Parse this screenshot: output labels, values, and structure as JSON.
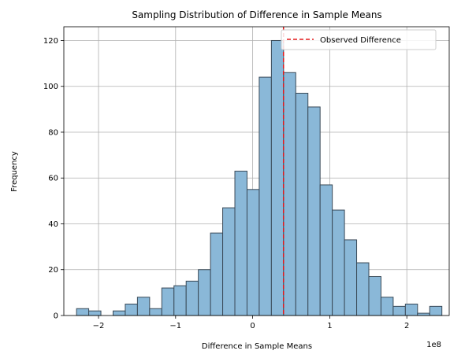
{
  "chart_data": {
    "type": "bar",
    "title": "Sampling Distribution of Difference in Sample Means",
    "xlabel": "Difference in Sample Means",
    "ylabel": "Frequency",
    "x_offset_text": "1e8",
    "xlim": [
      -2.45,
      2.55
    ],
    "ylim": [
      0,
      126
    ],
    "x_ticks": [
      -2,
      -1,
      0,
      1,
      2
    ],
    "x_tick_labels": [
      "−2",
      "−1",
      "0",
      "1",
      "2"
    ],
    "y_ticks": [
      0,
      20,
      40,
      60,
      80,
      100,
      120
    ],
    "y_tick_labels": [
      "0",
      "20",
      "40",
      "60",
      "80",
      "100",
      "120"
    ],
    "grid": true,
    "bar_color": "#8ab8d8",
    "bar_edge_color": "#3a4a58",
    "bins": {
      "start": -2.285,
      "width": 0.158,
      "counts": [
        3,
        2,
        0,
        2,
        5,
        8,
        3,
        12,
        13,
        15,
        20,
        36,
        47,
        63,
        55,
        104,
        120,
        106,
        97,
        91,
        57,
        46,
        33,
        23,
        17,
        8,
        4,
        5,
        1,
        4
      ]
    },
    "observed_difference": {
      "x": 0.4,
      "color": "#e31a1c",
      "style": "dashed",
      "label": "Observed Difference"
    },
    "legend_position": "top-right"
  }
}
